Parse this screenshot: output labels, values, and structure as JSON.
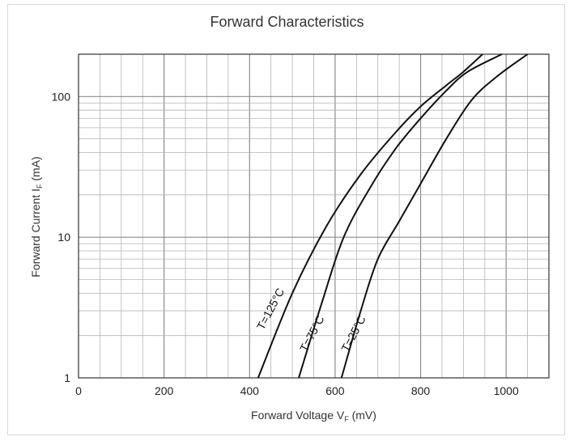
{
  "chart_data": {
    "type": "line",
    "title": "Forward Characteristics",
    "xlabel": {
      "main": "Forward Voltage V",
      "sub": "F",
      "unit": " (mV)"
    },
    "ylabel": {
      "main": "Forward Current I",
      "sub": "F",
      "unit": " (mA)"
    },
    "xlim": [
      0,
      1100
    ],
    "ylim": [
      1,
      200
    ],
    "yscale": "log",
    "grid": true,
    "x_ticks": [
      0,
      200,
      400,
      600,
      800,
      1000
    ],
    "x_tick_labels": [
      "0",
      "200",
      "400",
      "600",
      "800",
      "1000"
    ],
    "y_ticks": [
      1,
      10,
      100
    ],
    "y_tick_labels": [
      "1",
      "10",
      "100"
    ],
    "series": [
      {
        "name": "T=125°C",
        "x": [
          420,
          500,
          580,
          660,
          740,
          800,
          860,
          900,
          945
        ],
        "y": [
          1,
          4,
          12,
          28,
          55,
          85,
          120,
          150,
          200
        ]
      },
      {
        "name": "T=75°C",
        "x": [
          515,
          570,
          620,
          680,
          740,
          800,
          860,
          910,
          990
        ],
        "y": [
          1,
          3.5,
          10,
          22,
          42,
          70,
          110,
          150,
          200
        ]
      },
      {
        "name": "T=25°C",
        "x": [
          615,
          660,
          700,
          750,
          800,
          860,
          920,
          980,
          1050
        ],
        "y": [
          1,
          3,
          7,
          13,
          24,
          50,
          95,
          140,
          200
        ]
      }
    ]
  }
}
